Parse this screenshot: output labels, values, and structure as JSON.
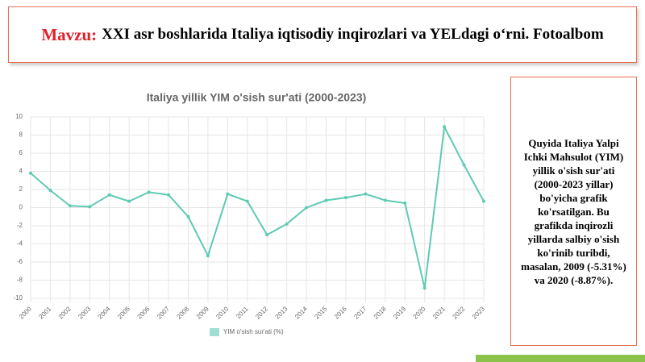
{
  "header": {
    "label": "Mavzu:",
    "title": "XXI asr boshlarida Italiya iqtisodiy inqirozlari va YELdagi o‘rni. Fotoalbom"
  },
  "side_text": "Quyida Italiya Yalpi Ichki Mahsulot (YIM) yillik o'sish sur'ati (2000-2023 yillar) bo'yicha grafik ko'rsatilgan. Bu grafikda inqirozli yillarda salbiy o'sish ko'rinib turibdi, masalan, 2009 (-5.31%) va 2020 (-8.87%).",
  "chart_data": {
    "type": "line",
    "title": "Italiya yillik YIM o'sish sur'ati (2000-2023)",
    "categories": [
      "2000",
      "2001",
      "2002",
      "2003",
      "2004",
      "2005",
      "2006",
      "2007",
      "2008",
      "2009",
      "2010",
      "2011",
      "2012",
      "2013",
      "2014",
      "2015",
      "2016",
      "2017",
      "2018",
      "2019",
      "2020",
      "2021",
      "2022",
      "2023"
    ],
    "series": [
      {
        "name": "YIM o'sish sur'ati (%)",
        "color": "#5fcab3",
        "values": [
          3.8,
          1.9,
          0.2,
          0.1,
          1.4,
          0.7,
          1.7,
          1.4,
          -1.0,
          -5.31,
          1.5,
          0.7,
          -3.0,
          -1.8,
          0.0,
          0.8,
          1.1,
          1.5,
          0.8,
          0.5,
          -8.87,
          8.9,
          4.7,
          0.7
        ]
      }
    ],
    "ylim": [
      -10,
      10
    ],
    "yticks": [
      -10,
      -8,
      -6,
      -4,
      -2,
      0,
      2,
      4,
      6,
      8,
      10
    ],
    "grid": true,
    "legend": "bottom"
  }
}
